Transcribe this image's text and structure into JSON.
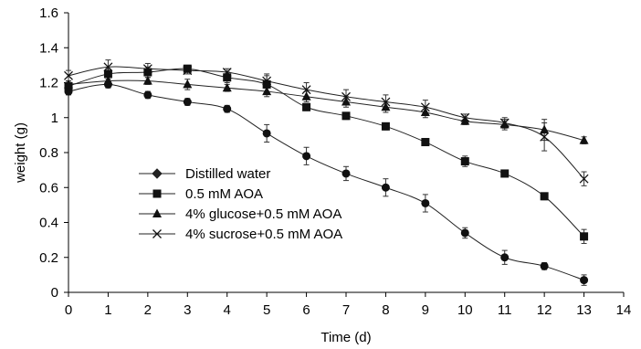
{
  "chart_data": {
    "type": "line",
    "xlabel": "Time (d)",
    "ylabel": "weight (g)",
    "xlim": [
      0,
      14
    ],
    "ylim": [
      0,
      1.6
    ],
    "xticks": [
      0,
      1,
      2,
      3,
      4,
      5,
      6,
      7,
      8,
      9,
      10,
      11,
      12,
      13,
      14
    ],
    "yticks": [
      0,
      0.2,
      0.4,
      0.6,
      0.8,
      1,
      1.2,
      1.4,
      1.6
    ],
    "ytick_labels": [
      "0",
      "0.2",
      "0.4",
      "0.6",
      "0.8",
      "1",
      "1.2",
      "1.4",
      "1.6"
    ],
    "grid": false,
    "legend_position": "lower-left",
    "x": [
      0,
      1,
      2,
      3,
      4,
      5,
      6,
      7,
      8,
      9,
      10,
      11,
      12,
      13
    ],
    "series": [
      {
        "name": "Distilled water",
        "marker": "diamond",
        "values": [
          1.15,
          1.19,
          1.13,
          1.09,
          1.05,
          0.91,
          0.78,
          0.68,
          0.6,
          0.51,
          0.34,
          0.2,
          0.15,
          0.07
        ],
        "errors": [
          0.02,
          0.02,
          0.02,
          0.02,
          0.02,
          0.05,
          0.05,
          0.04,
          0.05,
          0.05,
          0.03,
          0.04,
          0.02,
          0.03
        ]
      },
      {
        "name": "0.5 mM AOA",
        "marker": "square",
        "values": [
          1.18,
          1.25,
          1.26,
          1.28,
          1.23,
          1.19,
          1.06,
          1.01,
          0.95,
          0.86,
          0.75,
          0.68,
          0.55,
          0.32
        ],
        "errors": [
          0.02,
          0.03,
          0.03,
          0.02,
          0.03,
          0.05,
          0.02,
          0.02,
          0.02,
          0.02,
          0.03,
          0.02,
          0.02,
          0.04
        ]
      },
      {
        "name": "4% glucose+0.5 mM AOA",
        "marker": "triangle",
        "values": [
          1.19,
          1.21,
          1.21,
          1.19,
          1.17,
          1.15,
          1.12,
          1.09,
          1.06,
          1.03,
          0.98,
          0.96,
          0.93,
          0.87
        ],
        "errors": [
          0.02,
          0.02,
          0.02,
          0.03,
          0.02,
          0.03,
          0.03,
          0.03,
          0.03,
          0.03,
          0.02,
          0.03,
          0.06,
          0.02
        ]
      },
      {
        "name": "4% sucrose+0.5 mM AOA",
        "marker": "x",
        "values": [
          1.24,
          1.29,
          1.28,
          1.27,
          1.26,
          1.21,
          1.16,
          1.12,
          1.09,
          1.06,
          1.0,
          0.97,
          0.89,
          0.65
        ],
        "errors": [
          0.03,
          0.04,
          0.03,
          0.02,
          0.02,
          0.04,
          0.04,
          0.04,
          0.04,
          0.04,
          0.02,
          0.03,
          0.08,
          0.04
        ]
      }
    ]
  }
}
